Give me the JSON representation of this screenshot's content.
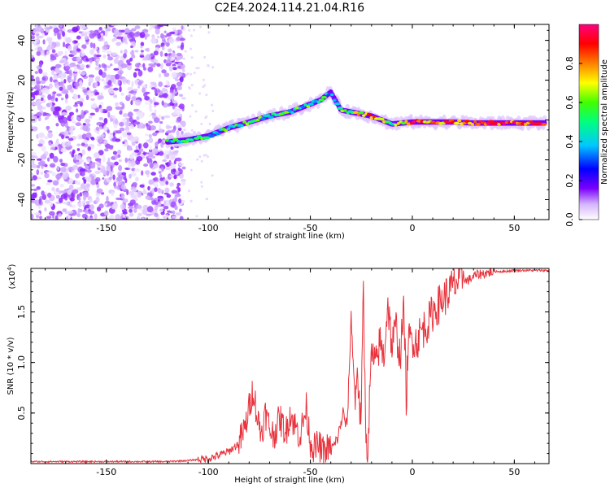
{
  "figure": {
    "title": "C2E4.2024.114.21.04.R16"
  },
  "chart_data": [
    {
      "type": "heatmap",
      "xlabel": "Height of straight line (km)",
      "ylabel": "Frequency (Hz)",
      "xlim": [
        -187,
        67
      ],
      "ylim": [
        -50,
        48
      ],
      "xticks": [
        -150,
        -100,
        -50,
        0,
        50
      ],
      "yticks": [
        -40,
        -20,
        0,
        20,
        40
      ],
      "colorbar": {
        "label": "Normalized spectral amplitude",
        "range": [
          0,
          1
        ],
        "ticks": [
          0.0,
          0.2,
          0.4,
          0.6,
          0.8
        ],
        "colormap": [
          "#ffffff",
          "#d4b3ff",
          "#7a00ff",
          "#0000ff",
          "#00c8ff",
          "#00ff80",
          "#40ff00",
          "#ffff00",
          "#ff8000",
          "#ff0000",
          "#ff0080"
        ]
      },
      "ridge": {
        "x": [
          -120,
          -110,
          -100,
          -90,
          -80,
          -70,
          -60,
          -50,
          -45,
          -40,
          -35,
          -30,
          -20,
          -10,
          0,
          10,
          20,
          30,
          40,
          50,
          65
        ],
        "y": [
          -11,
          -10,
          -8,
          -4,
          -1,
          2,
          4,
          8,
          10,
          14,
          5,
          4,
          2,
          -2,
          -1,
          -1,
          -1,
          -1.5,
          -1.5,
          -1.5,
          -1.5
        ],
        "amplitude": [
          0.45,
          0.45,
          0.5,
          0.5,
          0.55,
          0.5,
          0.5,
          0.5,
          0.45,
          0.45,
          0.5,
          0.6,
          0.85,
          0.55,
          0.85,
          0.8,
          0.8,
          0.8,
          0.85,
          0.85,
          0.85
        ]
      },
      "noise_region": {
        "x_range": [
          -187,
          -112
        ],
        "y_range": [
          -50,
          48
        ]
      }
    },
    {
      "type": "line",
      "xlabel": "Height of straight line (km)",
      "ylabel": "SNR (10 * v/v)",
      "yscale_note": "(x10",
      "yscale_exp": "4",
      "yscale_close": ")",
      "xlim": [
        -187,
        67
      ],
      "ylim": [
        0,
        1.93
      ],
      "xticks": [
        -150,
        -100,
        -50,
        0,
        50
      ],
      "yticks": [
        0.5,
        1.0,
        1.5
      ],
      "color": "#e8323c",
      "series": [
        {
          "x": [
            -187,
            -150,
            -120,
            -110,
            -100,
            -95,
            -90,
            -85,
            -82,
            -80,
            -78,
            -76,
            -74,
            -72,
            -70,
            -68,
            -65,
            -62,
            -60,
            -57,
            -55,
            -52,
            -50,
            -48,
            -46,
            -44,
            -42,
            -40,
            -38,
            -36,
            -34,
            -32,
            -30,
            -28,
            -27,
            -26,
            -25,
            -24,
            -23,
            -22,
            -20,
            -18,
            -16,
            -14,
            -12,
            -10,
            -8,
            -6,
            -4,
            -3,
            -2,
            0,
            2,
            4,
            6,
            8,
            10,
            12,
            14,
            16,
            18,
            20,
            22,
            24,
            25,
            26,
            28,
            30,
            32,
            35,
            40,
            45,
            50,
            55,
            60,
            67
          ],
          "y": [
            0.02,
            0.02,
            0.02,
            0.03,
            0.05,
            0.08,
            0.12,
            0.2,
            0.35,
            0.55,
            0.75,
            0.45,
            0.3,
            0.5,
            0.35,
            0.28,
            0.45,
            0.3,
            0.5,
            0.35,
            0.28,
            0.55,
            0.22,
            0.15,
            0.18,
            0.12,
            0.15,
            0.14,
            0.18,
            0.3,
            0.5,
            0.35,
            1.45,
            0.6,
            1.0,
            0.55,
            0.5,
            1.75,
            0.45,
            0.1,
            1.1,
            0.95,
            1.2,
            1.05,
            1.6,
            1.15,
            1.35,
            1.05,
            1.55,
            0.6,
            1.2,
            1.25,
            1.2,
            1.3,
            1.35,
            1.4,
            1.5,
            1.55,
            1.6,
            1.65,
            1.7,
            1.75,
            1.8,
            1.78,
            1.9,
            1.8,
            1.82,
            1.85,
            1.87,
            1.88,
            1.9,
            1.9,
            1.91,
            1.91,
            1.91,
            1.91
          ]
        }
      ]
    }
  ]
}
